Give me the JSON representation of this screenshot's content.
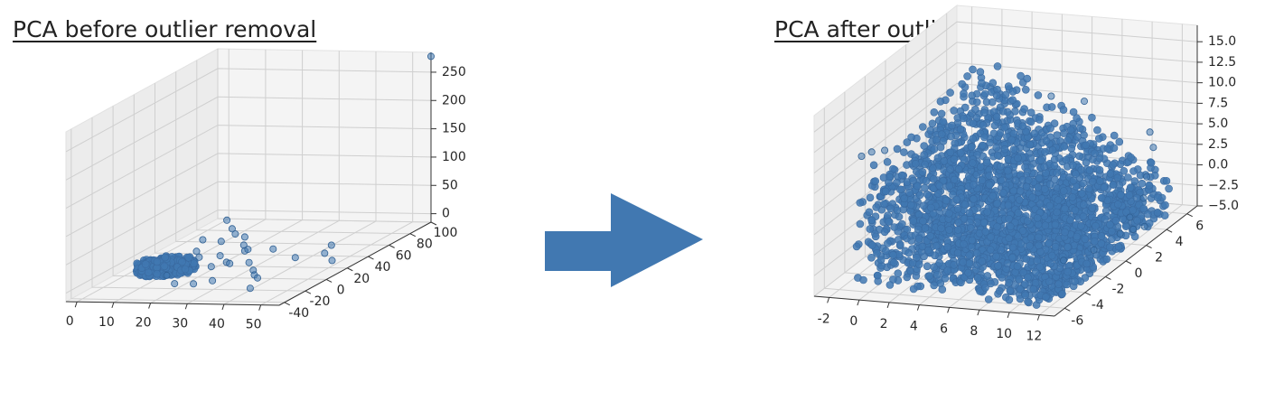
{
  "chart_data": [
    {
      "type": "scatter",
      "title": "PCA before outlier removal",
      "x_ticks": [
        0,
        10,
        20,
        30,
        40,
        50
      ],
      "y_ticks": [
        -40,
        -20,
        0,
        20,
        40,
        60,
        80,
        100
      ],
      "z_ticks": [
        0,
        50,
        100,
        150,
        200,
        250
      ],
      "xlim": [
        -3,
        55
      ],
      "ylim": [
        -45,
        100
      ],
      "zlim": [
        -15,
        285
      ],
      "grid": true,
      "series": [
        {
          "color": "#4178b1",
          "cluster": {
            "x_range": [
              3,
              18
            ],
            "y_range": [
              -8,
              14
            ],
            "z_range": [
              -8,
              8
            ],
            "count": 520
          },
          "points": [
            [
              55,
              100,
              278
            ],
            [
              16,
              42,
              43
            ],
            [
              18,
              40,
              30
            ],
            [
              12,
              33,
              17
            ],
            [
              20,
              36,
              25
            ],
            [
              22,
              38,
              18
            ],
            [
              24,
              30,
              12
            ],
            [
              19,
              26,
              22
            ],
            [
              14,
              20,
              10
            ],
            [
              26,
              24,
              8
            ],
            [
              21,
              18,
              5
            ],
            [
              28,
              20,
              15
            ],
            [
              25,
              10,
              2
            ],
            [
              30,
              14,
              -2
            ],
            [
              17,
              12,
              8
            ],
            [
              27,
              6,
              4
            ],
            [
              45,
              40,
              4
            ],
            [
              46,
              30,
              0
            ],
            [
              42,
              16,
              6
            ],
            [
              34,
              4,
              -5
            ],
            [
              36,
              -2,
              -7
            ],
            [
              38,
              -6,
              -8
            ],
            [
              40,
              -20,
              -12
            ],
            [
              20,
              -22,
              -4
            ],
            [
              24,
              -18,
              -8
            ],
            [
              28,
              -14,
              -6
            ],
            [
              52,
              16,
              2
            ],
            [
              32,
              30,
              6
            ],
            [
              15,
              -12,
              0
            ],
            [
              22,
              6,
              -2
            ]
          ]
        }
      ]
    },
    {
      "type": "scatter",
      "title": "PCA after outlier removal",
      "x_ticks": [
        -2,
        0,
        2,
        4,
        6,
        8,
        10,
        12
      ],
      "y_ticks": [
        -6,
        -4,
        -2,
        0,
        2,
        4,
        6
      ],
      "z_ticks": [
        "−5.0",
        "−2.5",
        "0.0",
        "2.5",
        "5.0",
        "7.5",
        "10.0",
        "12.5",
        "15.0"
      ],
      "xlim": [
        -3,
        13
      ],
      "ylim": [
        -7,
        7
      ],
      "zlim": [
        -5,
        17
      ],
      "grid": true,
      "series": [
        {
          "color": "#4178b1",
          "cluster": {
            "x_range": [
              -1,
              12
            ],
            "y_range": [
              -6,
              6
            ],
            "z_range": [
              -5,
              10
            ],
            "count": 2600
          },
          "points": [
            [
              -1.2,
              -5.0,
              10.4
            ],
            [
              -0.8,
              -4.6,
              10.6
            ],
            [
              -0.2,
              -4.2,
              10.5
            ],
            [
              4.5,
              5.2,
              8.8
            ],
            [
              6.5,
              5.5,
              8.2
            ],
            [
              10.8,
              5.6,
              5.0
            ],
            [
              11.3,
              5.2,
              3.6
            ],
            [
              11.4,
              4.4,
              0.8
            ],
            [
              11.6,
              3.8,
              -1.2
            ],
            [
              11.5,
              2.6,
              -2.4
            ],
            [
              12.0,
              2.2,
              -3.4
            ],
            [
              10.6,
              0.4,
              -4.4
            ],
            [
              9.4,
              -0.8,
              -4.7
            ],
            [
              11.8,
              1.2,
              -3.0
            ],
            [
              12.2,
              3.0,
              -3.8
            ]
          ]
        }
      ]
    },
    {
      "type": "annotation",
      "arrow_color": "#4178b1"
    }
  ]
}
